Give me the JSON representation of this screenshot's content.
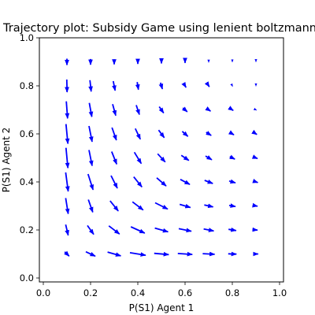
{
  "chart_data": {
    "type": "quiver",
    "title": "Trajectory plot: Subsidy Game using lenient boltzmann",
    "xlabel": "P(S1) Agent 1",
    "ylabel": "P(S1) Agent 2",
    "xlim": [
      0.0,
      1.0
    ],
    "ylim": [
      0.0,
      1.0
    ],
    "xticks": [
      "0.0",
      "0.2",
      "0.4",
      "0.6",
      "0.8",
      "1.0"
    ],
    "yticks": [
      "0.0",
      "0.2",
      "0.4",
      "0.6",
      "0.8",
      "1.0"
    ],
    "grid": false,
    "arrow_color": "#0000ff",
    "grid_x": [
      0.1,
      0.2,
      0.3,
      0.4,
      0.5,
      0.6,
      0.7,
      0.8,
      0.9
    ],
    "grid_y": [
      0.9,
      0.8,
      0.7,
      0.6,
      0.5,
      0.4,
      0.3,
      0.2,
      0.1
    ],
    "vectors": [
      [
        [
          0,
          -1.0
        ],
        [
          0,
          -0.9
        ],
        [
          0,
          -0.8
        ],
        [
          0,
          -0.65
        ],
        [
          0,
          -0.5
        ],
        [
          0,
          -0.35
        ],
        [
          0,
          -0.2
        ],
        [
          0,
          -0.1
        ],
        [
          0,
          -0.05
        ]
      ],
      [
        [
          0.05,
          -2.0
        ],
        [
          0.2,
          -1.8
        ],
        [
          0.3,
          -1.5
        ],
        [
          0.2,
          -1.2
        ],
        [
          0.3,
          -1.0
        ],
        [
          0.3,
          -0.5
        ],
        [
          0.2,
          -0.3
        ],
        [
          0.1,
          -0.2
        ],
        [
          0,
          -0.1
        ]
      ],
      [
        [
          0.2,
          -2.7
        ],
        [
          0.4,
          -2.2
        ],
        [
          0.5,
          -1.8
        ],
        [
          0.5,
          -1.5
        ],
        [
          0.7,
          -1.0
        ],
        [
          0.7,
          -0.6
        ],
        [
          0.6,
          -0.4
        ],
        [
          0.3,
          -0.2
        ],
        [
          0.2,
          -0.1
        ]
      ],
      [
        [
          0.3,
          -3.1
        ],
        [
          0.5,
          -2.5
        ],
        [
          0.7,
          -2.0
        ],
        [
          0.8,
          -1.7
        ],
        [
          0.9,
          -1.2
        ],
        [
          0.9,
          -0.8
        ],
        [
          0.8,
          -0.5
        ],
        [
          0.5,
          -0.3
        ],
        [
          0.3,
          -0.2
        ]
      ],
      [
        [
          0.3,
          -3.2
        ],
        [
          0.5,
          -2.5
        ],
        [
          0.8,
          -2.0
        ],
        [
          1.1,
          -1.8
        ],
        [
          1.2,
          -1.3
        ],
        [
          1.2,
          -0.8
        ],
        [
          1.0,
          -0.6
        ],
        [
          0.8,
          -0.4
        ],
        [
          0.5,
          -0.2
        ]
      ],
      [
        [
          0.4,
          -3.0
        ],
        [
          0.8,
          -2.5
        ],
        [
          1.0,
          -2.0
        ],
        [
          1.3,
          -1.6
        ],
        [
          1.5,
          -1.3
        ],
        [
          1.5,
          -0.8
        ],
        [
          1.3,
          -0.5
        ],
        [
          1.0,
          -0.3
        ],
        [
          0.6,
          -0.2
        ]
      ],
      [
        [
          0.4,
          -2.5
        ],
        [
          0.7,
          -2.0
        ],
        [
          1.3,
          -1.6
        ],
        [
          1.7,
          -1.3
        ],
        [
          2.0,
          -1.0
        ],
        [
          1.7,
          -0.5
        ],
        [
          1.4,
          -0.3
        ],
        [
          1.0,
          -0.2
        ],
        [
          0.5,
          -0.1
        ]
      ],
      [
        [
          0.4,
          -1.7
        ],
        [
          1.0,
          -1.4
        ],
        [
          1.7,
          -1.3
        ],
        [
          2.2,
          -1.0
        ],
        [
          2.1,
          -0.6
        ],
        [
          2.0,
          -0.4
        ],
        [
          1.6,
          -0.3
        ],
        [
          1.2,
          -0.2
        ],
        [
          0.5,
          -0.05
        ]
      ],
      [
        [
          0.7,
          -0.7
        ],
        [
          1.5,
          -0.7
        ],
        [
          2.1,
          -0.6
        ],
        [
          2.5,
          -0.4
        ],
        [
          2.3,
          -0.2
        ],
        [
          2.3,
          -0.15
        ],
        [
          1.9,
          -0.1
        ],
        [
          1.3,
          -0.05
        ],
        [
          0.7,
          0
        ]
      ]
    ]
  }
}
